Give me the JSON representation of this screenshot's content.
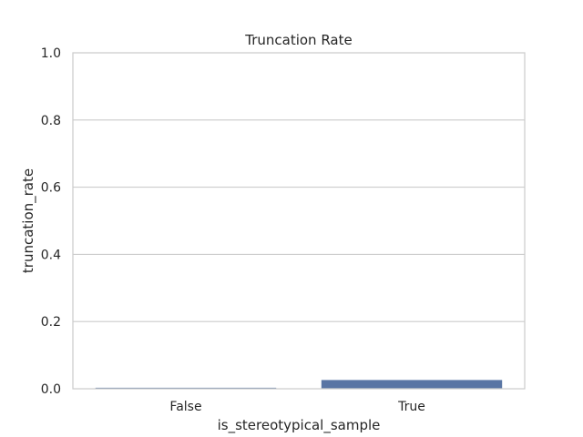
{
  "chart_data": {
    "type": "bar",
    "title": "Truncation Rate",
    "xlabel": "is_stereotypical_sample",
    "ylabel": "truncation_rate",
    "categories": [
      "False",
      "True"
    ],
    "values": [
      0.003,
      0.026
    ],
    "ylim": [
      0,
      1.0
    ],
    "yticks": [
      0.0,
      0.2,
      0.4,
      0.6,
      0.8,
      1.0
    ],
    "ytick_labels": [
      "0.0",
      "0.2",
      "0.4",
      "0.6",
      "0.8",
      "1.0"
    ],
    "bar_color": "#5975a4",
    "grid": "y",
    "legend": "none"
  }
}
